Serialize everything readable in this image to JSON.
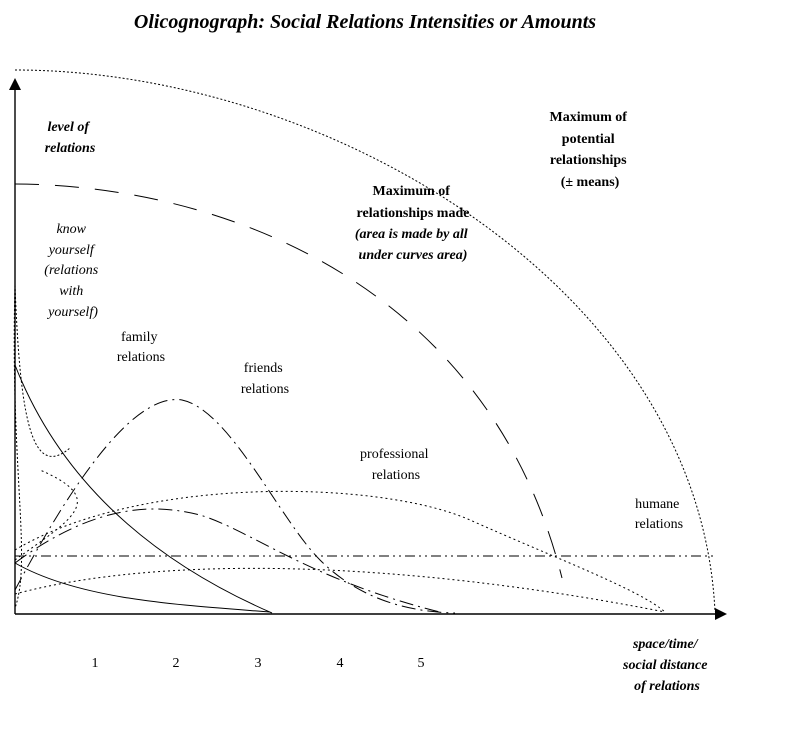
{
  "title": "Olicognograph: Social Relations Intensities or Amounts",
  "y_axis_label": [
    "level of",
    "relations"
  ],
  "x_axis_label": [
    "space/time/",
    "social distance",
    "of relations"
  ],
  "x_ticks": [
    "1",
    "2",
    "3",
    "4",
    "5"
  ],
  "labels": {
    "know_yourself": [
      "know",
      "yourself",
      "(relations",
      "with",
      "yourself)"
    ],
    "family": [
      "family",
      "relations"
    ],
    "friends": [
      "friends",
      "relations"
    ],
    "professional": [
      "professional",
      "relations"
    ],
    "humane": [
      "humane",
      "relations"
    ],
    "max_made_title": [
      "Maximum of",
      "relationships made"
    ],
    "max_made_note": [
      "(area is made by all",
      "under curves area)"
    ],
    "max_potential": [
      "Maximum of",
      "potential",
      "relationships",
      "(± means)"
    ]
  }
}
